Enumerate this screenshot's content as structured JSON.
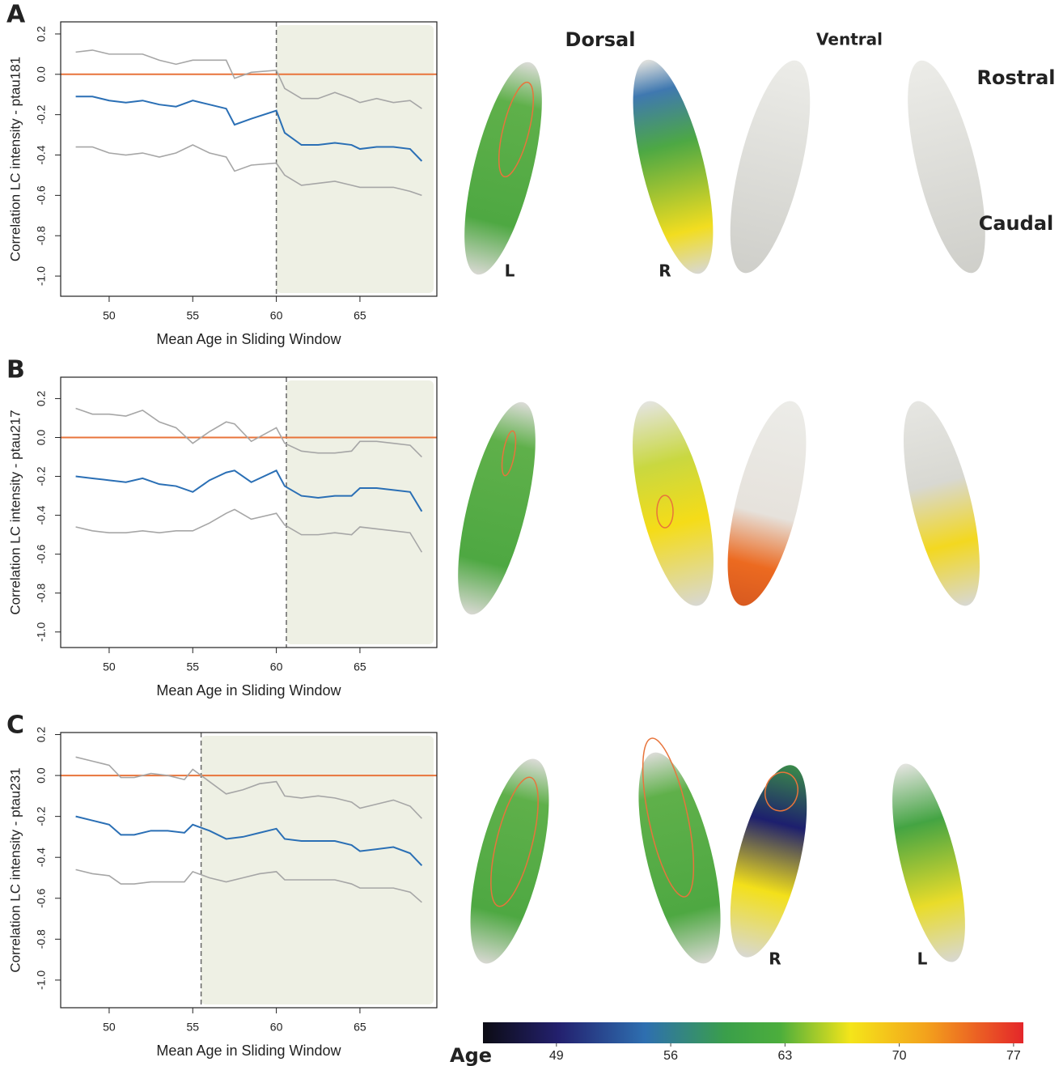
{
  "chart_data": [
    {
      "type": "line",
      "panel": "A",
      "ylabel": "Correlation LC intensity - ptau181",
      "xlabel": "Mean Age in Sliding Window",
      "x": [
        48,
        49,
        50,
        51,
        52,
        53,
        54,
        55,
        56,
        57,
        57.5,
        58.5,
        60,
        60.5,
        61.5,
        62.5,
        63.5,
        64.5,
        65,
        66,
        67,
        68,
        68.7
      ],
      "series": [
        {
          "color": "#a6a6a6",
          "values": [
            0.11,
            0.12,
            0.1,
            0.1,
            0.1,
            0.07,
            0.05,
            0.07,
            0.07,
            0.07,
            -0.02,
            0.01,
            0.02,
            -0.07,
            -0.12,
            -0.12,
            -0.09,
            -0.12,
            -0.14,
            -0.12,
            -0.14,
            -0.13,
            -0.17
          ]
        },
        {
          "color": "#2a6fb5",
          "values": [
            -0.11,
            -0.11,
            -0.13,
            -0.14,
            -0.13,
            -0.15,
            -0.16,
            -0.13,
            -0.15,
            -0.17,
            -0.25,
            -0.22,
            -0.18,
            -0.29,
            -0.35,
            -0.35,
            -0.34,
            -0.35,
            -0.37,
            -0.36,
            -0.36,
            -0.37,
            -0.43
          ]
        },
        {
          "color": "#a6a6a6",
          "values": [
            -0.36,
            -0.36,
            -0.39,
            -0.4,
            -0.39,
            -0.41,
            -0.39,
            -0.35,
            -0.39,
            -0.41,
            -0.48,
            -0.45,
            -0.44,
            -0.5,
            -0.55,
            -0.54,
            -0.53,
            -0.55,
            -0.56,
            -0.56,
            -0.56,
            -0.58,
            -0.6
          ]
        }
      ],
      "xlim": [
        47.1,
        69.6
      ],
      "xticks": [
        50,
        55,
        60,
        65
      ],
      "ylim": [
        -1.1,
        0.26
      ],
      "yticks": [
        0.2,
        {
          "value": 0,
          "label": "0.0"
        },
        -0.2,
        -0.4,
        -0.6,
        -0.8,
        {
          "value": -1,
          "label": "-1.0"
        }
      ],
      "hline": 0,
      "hline_color": "#e8743b",
      "vline": 60,
      "shade_color": "#eef0e4"
    },
    {
      "type": "line",
      "panel": "B",
      "ylabel": "Correlation LC intensity - ptau217",
      "xlabel": "Mean Age in Sliding Window",
      "x": [
        48,
        49,
        50,
        51,
        52,
        53,
        54,
        55,
        56,
        57,
        57.5,
        58.5,
        60,
        60.5,
        61.5,
        62.5,
        63.5,
        64.5,
        65,
        66,
        67,
        68,
        68.7
      ],
      "series": [
        {
          "color": "#a6a6a6",
          "values": [
            0.15,
            0.12,
            0.12,
            0.11,
            0.14,
            0.08,
            0.05,
            -0.03,
            0.03,
            0.08,
            0.07,
            -0.02,
            0.05,
            -0.03,
            -0.07,
            -0.08,
            -0.08,
            -0.07,
            -0.02,
            -0.02,
            -0.03,
            -0.04,
            -0.1
          ]
        },
        {
          "color": "#2a6fb5",
          "values": [
            -0.2,
            -0.21,
            -0.22,
            -0.23,
            -0.21,
            -0.24,
            -0.25,
            -0.28,
            -0.22,
            -0.18,
            -0.17,
            -0.23,
            -0.17,
            -0.25,
            -0.3,
            -0.31,
            -0.3,
            -0.3,
            -0.26,
            -0.26,
            -0.27,
            -0.28,
            -0.38
          ]
        },
        {
          "color": "#a6a6a6",
          "values": [
            -0.46,
            -0.48,
            -0.49,
            -0.49,
            -0.48,
            -0.49,
            -0.48,
            -0.48,
            -0.44,
            -0.39,
            -0.37,
            -0.42,
            -0.39,
            -0.45,
            -0.5,
            -0.5,
            -0.49,
            -0.5,
            -0.46,
            -0.47,
            -0.48,
            -0.49,
            -0.59
          ]
        }
      ],
      "xlim": [
        47.1,
        69.6
      ],
      "xticks": [
        50,
        55,
        60,
        65
      ],
      "ylim": [
        -1.08,
        0.31
      ],
      "yticks": [
        0.2,
        {
          "value": 0,
          "label": "0.0"
        },
        -0.2,
        -0.4,
        -0.6,
        -0.8,
        {
          "value": -1,
          "label": "-1.0"
        }
      ],
      "hline": 0,
      "hline_color": "#e8743b",
      "vline": 60.6,
      "shade_color": "#eef0e4"
    },
    {
      "type": "line",
      "panel": "C",
      "ylabel": "Correlation LC intensity - ptau231",
      "xlabel": "Mean Age in Sliding Window",
      "x": [
        48,
        49,
        50,
        50.7,
        51.5,
        52.5,
        53.5,
        54.5,
        55,
        56,
        57,
        58,
        59,
        60,
        60.5,
        61.5,
        62.5,
        63.5,
        64.5,
        65,
        66,
        67,
        68,
        68.7
      ],
      "series": [
        {
          "color": "#a6a6a6",
          "values": [
            0.09,
            0.07,
            0.05,
            -0.01,
            -0.01,
            0.01,
            0.0,
            -0.02,
            0.03,
            -0.03,
            -0.09,
            -0.07,
            -0.04,
            -0.03,
            -0.1,
            -0.11,
            -0.1,
            -0.11,
            -0.13,
            -0.16,
            -0.14,
            -0.12,
            -0.15,
            -0.21
          ]
        },
        {
          "color": "#2a6fb5",
          "values": [
            -0.2,
            -0.22,
            -0.24,
            -0.29,
            -0.29,
            -0.27,
            -0.27,
            -0.28,
            -0.24,
            -0.27,
            -0.31,
            -0.3,
            -0.28,
            -0.26,
            -0.31,
            -0.32,
            -0.32,
            -0.32,
            -0.34,
            -0.37,
            -0.36,
            -0.35,
            -0.38,
            -0.44
          ]
        },
        {
          "color": "#a6a6a6",
          "values": [
            -0.46,
            -0.48,
            -0.49,
            -0.53,
            -0.53,
            -0.52,
            -0.52,
            -0.52,
            -0.47,
            -0.5,
            -0.52,
            -0.5,
            -0.48,
            -0.47,
            -0.51,
            -0.51,
            -0.51,
            -0.51,
            -0.53,
            -0.55,
            -0.55,
            -0.55,
            -0.57,
            -0.62
          ]
        }
      ],
      "xlim": [
        47.1,
        69.6
      ],
      "xticks": [
        50,
        55,
        60,
        65
      ],
      "ylim": [
        -1.135,
        0.21
      ],
      "yticks": [
        0.2,
        {
          "value": 0,
          "label": "0.0"
        },
        -0.2,
        -0.4,
        -0.6,
        -0.8,
        {
          "value": -1,
          "label": "-1.0"
        }
      ],
      "hline": 0,
      "hline_color": "#e8743b",
      "vline": 55.5,
      "shade_color": "#eef0e4"
    }
  ],
  "renderings": {
    "dorsal": "Dorsal",
    "ventral": "Ventral",
    "rostral": "Rostral",
    "caudal": "Caudal",
    "a_left": "L",
    "a_right": "R",
    "c_right": "R",
    "c_left": "L"
  },
  "colorbar": {
    "label": "Age",
    "lim": [
      44.5,
      77.6
    ],
    "ticks": [
      49,
      56,
      63,
      70,
      77
    ]
  }
}
